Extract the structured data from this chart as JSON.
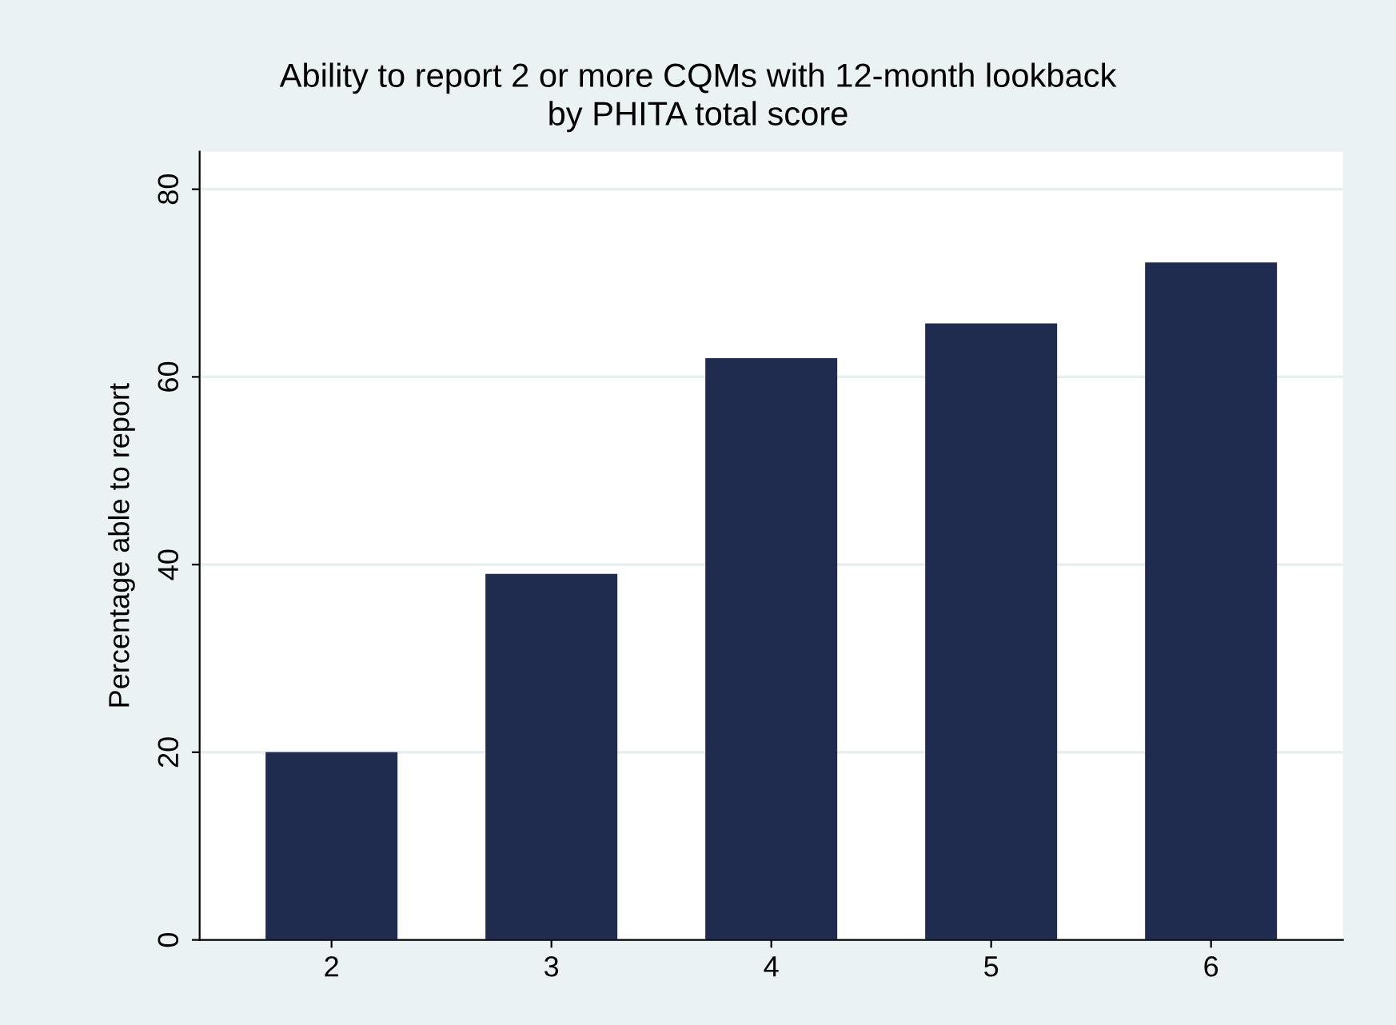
{
  "chart_data": {
    "type": "bar",
    "title": "Ability to report 2 or more CQMs with 12-month lookback\nby PHITA total score",
    "ylabel": "Percentage able to report",
    "categories": [
      "2",
      "3",
      "4",
      "5",
      "6"
    ],
    "values": [
      20,
      39,
      62,
      65.7,
      72.2
    ],
    "color": "#1f2b4f",
    "ylim": [
      0,
      84
    ],
    "yticks": [
      0,
      20,
      40,
      60,
      80
    ],
    "grid": "y"
  }
}
